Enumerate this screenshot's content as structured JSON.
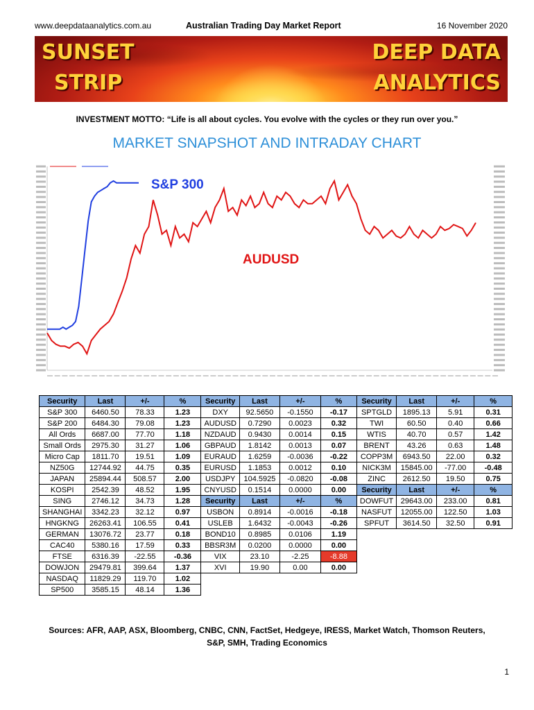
{
  "header": {
    "site": "www.deepdataanalytics.com.au",
    "title": "Australian Trading Day Market Report",
    "date": "16 November 2020"
  },
  "banner": {
    "left_line1": "SUNSET",
    "left_line2": "STRIP",
    "right_line1": "DEEP DATA",
    "right_line2": "ANALYTICS"
  },
  "motto": {
    "label": "INVESTMENT MOTTO:",
    "text": "“Life is all about cycles. You evolve with the cycles or they run over you.”"
  },
  "section_title": "MARKET SNAPSHOT AND INTRADAY CHART",
  "chart_data": {
    "type": "line",
    "series": [
      {
        "name": "S&P 300",
        "color": "#1f3ee0",
        "values": [
          0.18,
          0.18,
          0.18,
          0.18,
          0.18,
          0.19,
          0.18,
          0.19,
          0.2,
          0.22,
          0.3,
          0.45,
          0.6,
          0.75,
          0.85,
          0.88,
          0.9,
          0.91,
          0.92,
          0.93,
          0.95,
          0.96,
          0.95,
          0.95,
          0.95,
          0.95,
          0.95,
          0.95,
          0.95,
          0.95
        ]
      },
      {
        "name": "AUDUSD",
        "color": "#e01414",
        "values": [
          0.16,
          0.12,
          0.1,
          0.09,
          0.09,
          0.08,
          0.1,
          0.11,
          0.09,
          0.05,
          0.12,
          0.15,
          0.18,
          0.2,
          0.22,
          0.26,
          0.32,
          0.38,
          0.45,
          0.55,
          0.62,
          0.58,
          0.68,
          0.72,
          0.86,
          0.78,
          0.68,
          0.7,
          0.62,
          0.72,
          0.66,
          0.68,
          0.64,
          0.74,
          0.72,
          0.76,
          0.8,
          0.74,
          0.82,
          0.86,
          0.92,
          0.8,
          0.82,
          0.78,
          0.86,
          0.83,
          0.88,
          0.82,
          0.84,
          0.9,
          0.84,
          0.82,
          0.88,
          0.86,
          0.9,
          0.88,
          0.84,
          0.82,
          0.86,
          0.84,
          0.84,
          0.86,
          0.88,
          0.84,
          0.92,
          0.96,
          0.86,
          0.9,
          0.94,
          0.88,
          0.84,
          0.76,
          0.7,
          0.68,
          0.72,
          0.7,
          0.66,
          0.68,
          0.7,
          0.67,
          0.66,
          0.68,
          0.72,
          0.68,
          0.66,
          0.7,
          0.68,
          0.66,
          0.68,
          0.72,
          0.7,
          0.71,
          0.73,
          0.72,
          0.71,
          0.67,
          0.7,
          0.74
        ]
      }
    ],
    "annotations": [
      "S&P 300",
      "AUDUSD"
    ]
  },
  "table": {
    "rows": [
      [
        "Security",
        "Last",
        "+/-",
        "%",
        "Security",
        "Last",
        "+/-",
        "%",
        "Security",
        "Last",
        "+/-",
        "%"
      ],
      [
        "S&P 300",
        "6460.50",
        "78.33",
        "1.23",
        "DXY",
        "92.5650",
        "-0.1550",
        "-0.17",
        "SPTGLD",
        "1895.13",
        "5.91",
        "0.31"
      ],
      [
        "S&P 200",
        "6484.30",
        "79.08",
        "1.23",
        "AUDUSD",
        "0.7290",
        "0.0023",
        "0.32",
        "TWI",
        "60.50",
        "0.40",
        "0.66"
      ],
      [
        "All Ords",
        "6687.00",
        "77.70",
        "1.18",
        "NZDAUD",
        "0.9430",
        "0.0014",
        "0.15",
        "WTIS",
        "40.70",
        "0.57",
        "1.42"
      ],
      [
        "Small Ords",
        "2975.30",
        "31.27",
        "1.06",
        "GBPAUD",
        "1.8142",
        "0.0013",
        "0.07",
        "BRENT",
        "43.26",
        "0.63",
        "1.48"
      ],
      [
        "Micro Cap",
        "1811.70",
        "19.51",
        "1.09",
        "EURAUD",
        "1.6259",
        "-0.0036",
        "-0.22",
        "COPP3M",
        "6943.50",
        "22.00",
        "0.32"
      ],
      [
        "NZ50G",
        "12744.92",
        "44.75",
        "0.35",
        "EURUSD",
        "1.1853",
        "0.0012",
        "0.10",
        "NICK3M",
        "15845.00",
        "-77.00",
        "-0.48"
      ],
      [
        "JAPAN",
        "25894.44",
        "508.57",
        "2.00",
        "USDJPY",
        "104.5925",
        "-0.0820",
        "-0.08",
        "ZINC",
        "2612.50",
        "19.50",
        "0.75"
      ],
      [
        "KOSPI",
        "2542.39",
        "48.52",
        "1.95",
        "CNYUSD",
        "0.1514",
        "0.0000",
        "0.00",
        "Security",
        "Last",
        "+/-",
        "%"
      ],
      [
        "SING",
        "2746.12",
        "34.73",
        "1.28",
        "Security",
        "Last",
        "+/-",
        "%",
        "DOWFUT",
        "29643.00",
        "233.00",
        "0.81"
      ],
      [
        "SHANGHAI",
        "3342.23",
        "32.12",
        "0.97",
        "USBON",
        "0.8914",
        "-0.0016",
        "-0.18",
        "NASFUT",
        "12055.00",
        "122.50",
        "1.03"
      ],
      [
        "HNGKNG",
        "26263.41",
        "106.55",
        "0.41",
        "USLEB",
        "1.6432",
        "-0.0043",
        "-0.26",
        "SPFUT",
        "3614.50",
        "32.50",
        "0.91"
      ],
      [
        "GERMAN",
        "13076.72",
        "23.77",
        "0.18",
        "BOND10",
        "0.8985",
        "0.0106",
        "1.19",
        "",
        "",
        "",
        ""
      ],
      [
        "CAC40",
        "5380.16",
        "17.59",
        "0.33",
        "BBSR3M",
        "0.0200",
        "0.0000",
        "0.00",
        "",
        "",
        "",
        ""
      ],
      [
        "FTSE",
        "6316.39",
        "-22.55",
        "-0.36",
        "VIX",
        "23.10",
        "-2.25",
        "-8.88",
        "",
        "",
        "",
        ""
      ],
      [
        "DOWJON",
        "29479.81",
        "399.64",
        "1.37",
        "XVI",
        "19.90",
        "0.00",
        "0.00",
        "",
        "",
        "",
        ""
      ],
      [
        "NASDAQ",
        "11829.29",
        "119.70",
        "1.02",
        "",
        "",
        "",
        "",
        "",
        "",
        "",
        ""
      ],
      [
        "SP500",
        "3585.15",
        "48.14",
        "1.36",
        "",
        "",
        "",
        "",
        "",
        "",
        "",
        ""
      ]
    ]
  },
  "sources": {
    "line1": "Sources: AFR, AAP, ASX,  Bloomberg, CNBC, CNN, FactSet, Hedgeye, IRESS, Market Watch, Thomson Reuters,",
    "line2": "S&P, SMH, Trading Economics"
  },
  "page_number": "1",
  "colors": {
    "header_cell": "#8fb4e3",
    "negative_highlight": "#e53a2a",
    "title_blue": "#2d8fd8",
    "banner_text": "#ffd23a"
  }
}
